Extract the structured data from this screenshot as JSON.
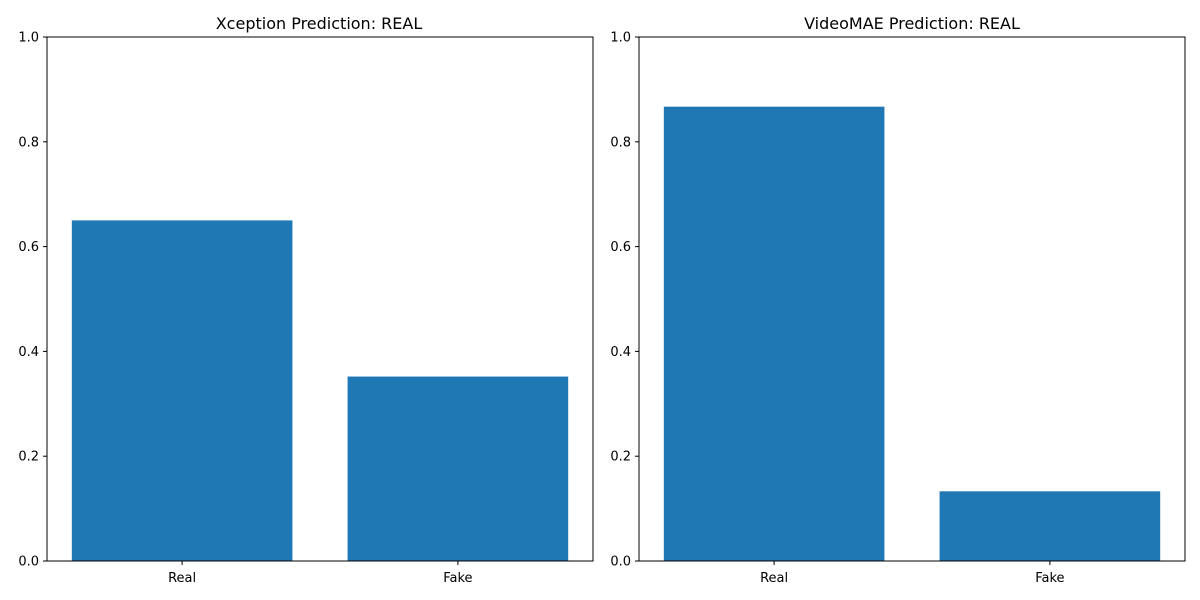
{
  "chart_data": [
    {
      "type": "bar",
      "title": "Xception Prediction: REAL",
      "categories": [
        "Real",
        "Fake"
      ],
      "values": [
        0.65,
        0.352
      ],
      "ylim": [
        0,
        1
      ],
      "yticks": [
        0.0,
        0.2,
        0.4,
        0.6,
        0.8,
        1.0
      ],
      "ytick_labels": [
        "0.0",
        "0.2",
        "0.4",
        "0.6",
        "0.8",
        "1.0"
      ],
      "bar_color": "#1f77b4",
      "grid": false,
      "xlabel": "",
      "ylabel": ""
    },
    {
      "type": "bar",
      "title": "VideoMAE Prediction: REAL",
      "categories": [
        "Real",
        "Fake"
      ],
      "values": [
        0.867,
        0.133
      ],
      "ylim": [
        0,
        1
      ],
      "yticks": [
        0.0,
        0.2,
        0.4,
        0.6,
        0.8,
        1.0
      ],
      "ytick_labels": [
        "0.0",
        "0.2",
        "0.4",
        "0.6",
        "0.8",
        "1.0"
      ],
      "bar_color": "#1f77b4",
      "grid": false,
      "xlabel": "",
      "ylabel": ""
    }
  ]
}
